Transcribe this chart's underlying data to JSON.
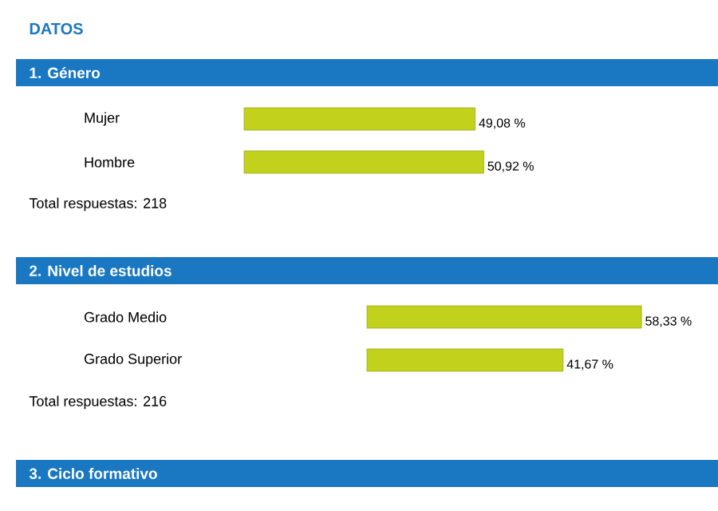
{
  "chart_data": [
    {
      "type": "bar",
      "orientation": "horizontal",
      "title": "DATOS",
      "subtitle": "1. Género",
      "categories": [
        "Mujer",
        "Hombre"
      ],
      "values": [
        49.08,
        50.92
      ],
      "value_labels": [
        "49,08 %",
        "50,92 %"
      ],
      "color": "#c2d21c",
      "annotations": [
        "Total respuestas: 218"
      ]
    },
    {
      "type": "bar",
      "orientation": "horizontal",
      "title": "2. Nivel de estudios",
      "categories": [
        "Grado Medio",
        "Grado Superior"
      ],
      "values": [
        58.33,
        41.67
      ],
      "value_labels": [
        "58,33 %",
        "41,67 %"
      ],
      "color": "#c2d21c",
      "annotations": [
        "Total respuestas: 216"
      ]
    },
    {
      "type": "other",
      "title": "3. Ciclo formativo"
    }
  ]
}
